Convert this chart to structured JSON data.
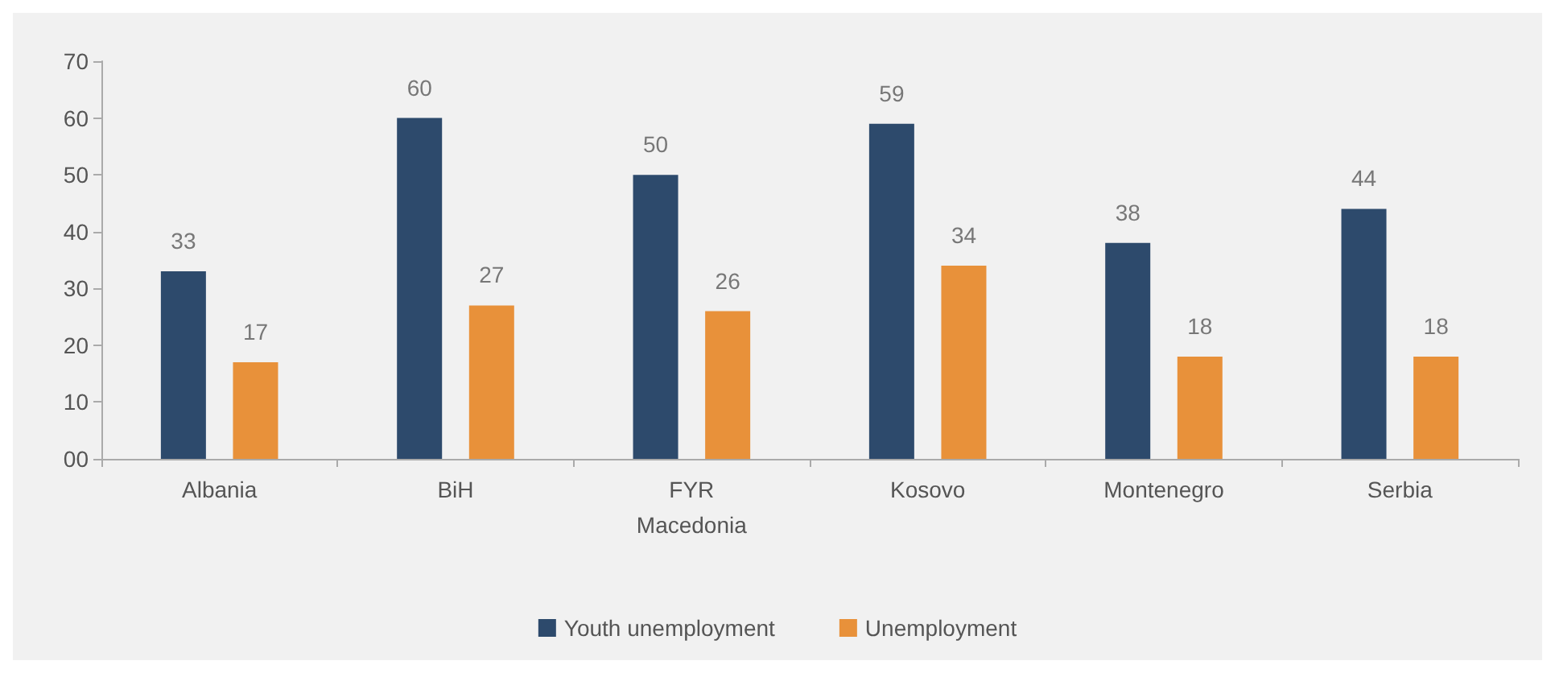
{
  "chart_data": {
    "type": "bar",
    "categories": [
      "Albania",
      "BiH",
      "FYR\nMacedonia",
      "Kosovo",
      "Montenegro",
      "Serbia"
    ],
    "series": [
      {
        "name": "Youth unemployment",
        "color": "#2d4a6c",
        "values": [
          33,
          60,
          50,
          59,
          38,
          44
        ]
      },
      {
        "name": "Unemployment",
        "color": "#e8913a",
        "values": [
          17,
          27,
          26,
          34,
          18,
          18
        ]
      }
    ],
    "ylim": [
      0,
      70
    ],
    "yticks": [
      {
        "value": 0,
        "label": "00"
      },
      10,
      20,
      30,
      40,
      50,
      60,
      70
    ],
    "grid": false,
    "legend": "bottom",
    "data_labels": true
  }
}
